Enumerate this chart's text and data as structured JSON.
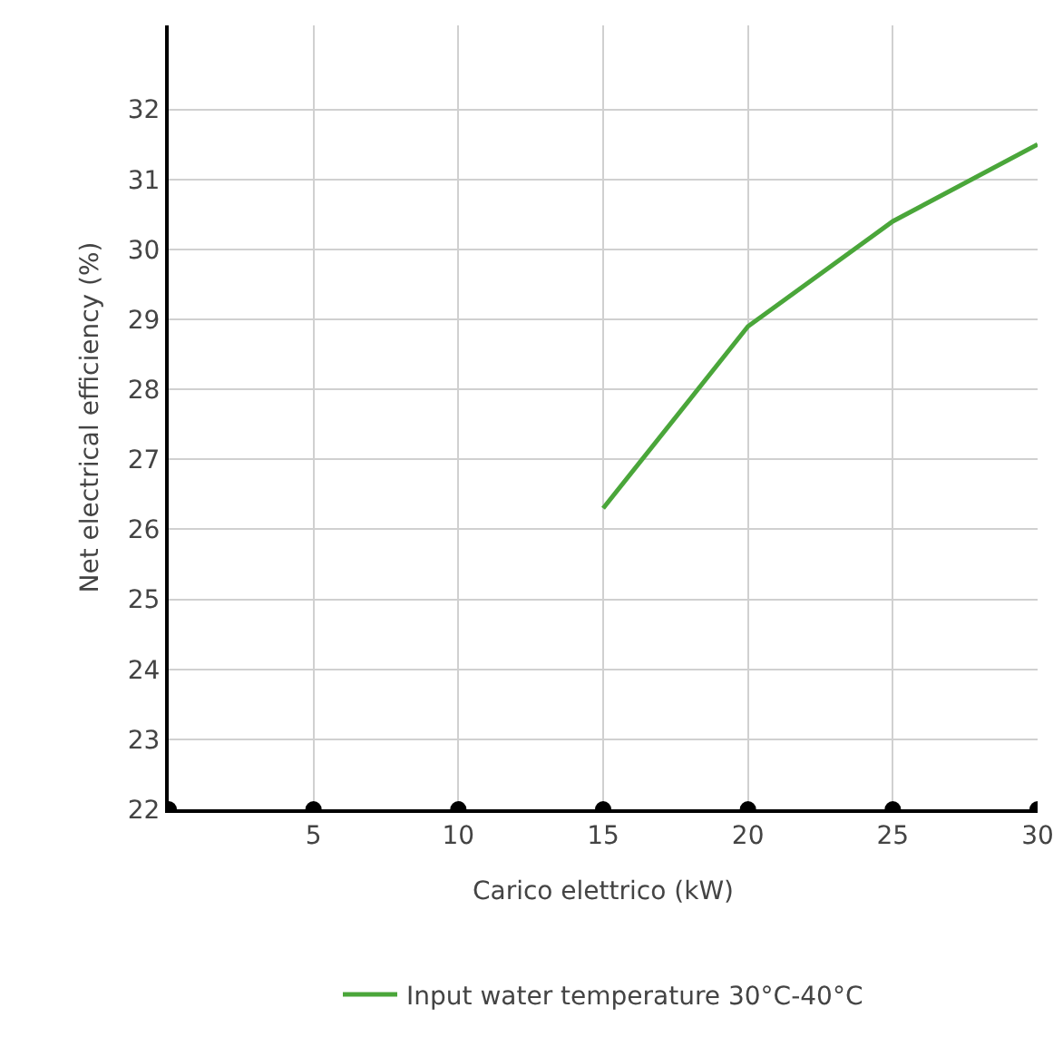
{
  "chart_data": {
    "type": "line",
    "xlabel": "Carico elettrico (kW)",
    "ylabel": "Net electrical efficiency (%)",
    "x": [
      15,
      20,
      25,
      30
    ],
    "series": [
      {
        "name": "Input water temperature 30°C-40°C",
        "color": "#4aa63a",
        "values": [
          26.3,
          28.9,
          30.4,
          31.5
        ]
      }
    ],
    "xlim": [
      0,
      30
    ],
    "xticks": [
      {
        "value": 0,
        "label": null
      },
      5,
      10,
      15,
      20,
      25,
      30
    ],
    "ylim": [
      22,
      33.2
    ],
    "yticks": [
      22,
      23,
      24,
      25,
      26,
      27,
      28,
      29,
      30,
      31,
      32
    ],
    "grid": true,
    "legend": "bottom",
    "marker": "none",
    "line_style": "solid"
  }
}
